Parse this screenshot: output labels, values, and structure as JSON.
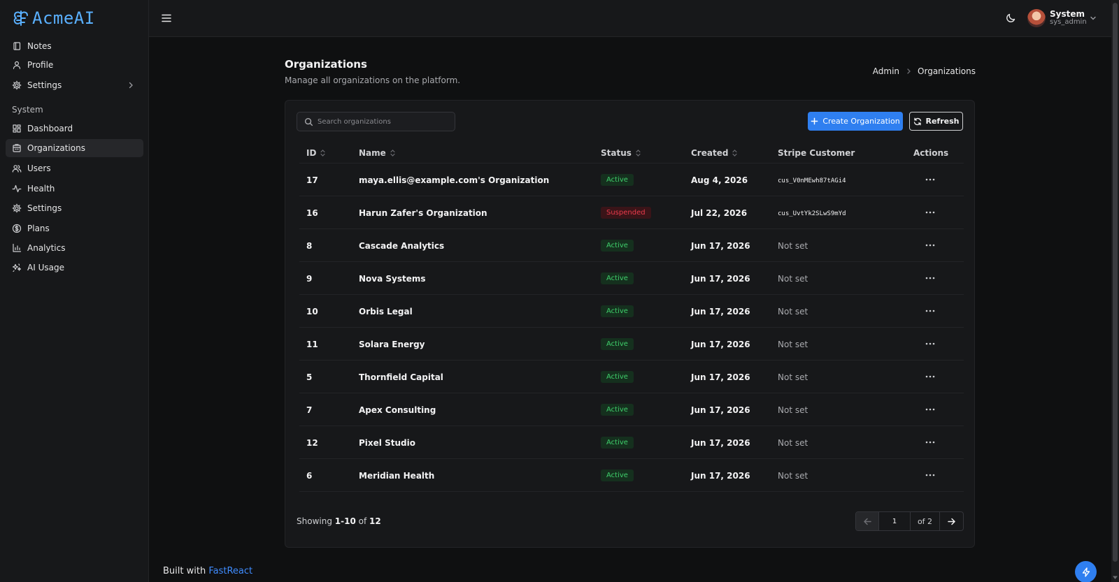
{
  "brand": {
    "name": "AcmeAI",
    "color": "#5ab0ff"
  },
  "sidebar": {
    "top_items": [
      {
        "label": "Notes",
        "icon": "notebook-icon"
      },
      {
        "label": "Profile",
        "icon": "user-icon"
      },
      {
        "label": "Settings",
        "icon": "gear-icon"
      }
    ],
    "section_label": "System",
    "system_items": [
      {
        "label": "Dashboard",
        "icon": "dashboard-icon"
      },
      {
        "label": "Organizations",
        "icon": "building-icon",
        "active": true
      },
      {
        "label": "Users",
        "icon": "users-icon"
      },
      {
        "label": "Health",
        "icon": "activity-icon"
      },
      {
        "label": "Settings",
        "icon": "gear-icon"
      },
      {
        "label": "Plans",
        "icon": "dollar-icon"
      },
      {
        "label": "Analytics",
        "icon": "bar-chart-icon"
      },
      {
        "label": "AI Usage",
        "icon": "sparkles-icon"
      }
    ]
  },
  "topbar": {
    "user_name": "System",
    "user_handle": "sys_admin"
  },
  "page": {
    "title": "Organizations",
    "subtitle": "Manage all organizations on the platform.",
    "breadcrumb": [
      "Admin",
      "Organizations"
    ]
  },
  "toolbar": {
    "search_placeholder": "Search organizations",
    "create_label": "Create Organization",
    "refresh_label": "Refresh",
    "accent": "#2f7ff0"
  },
  "table": {
    "columns": {
      "id": "ID",
      "name": "Name",
      "status": "Status",
      "created": "Created",
      "stripe": "Stripe Customer",
      "actions": "Actions"
    },
    "rows": [
      {
        "id": "17",
        "name": "maya.ellis@example.com's Organization",
        "status": "Active",
        "created": "Aug 4, 2026",
        "stripe": "cus_V0nMEwh87tAGi4"
      },
      {
        "id": "16",
        "name": "Harun Zafer's Organization",
        "status": "Suspended",
        "created": "Jul 22, 2026",
        "stripe": "cus_UvtYk2SLwS9mYd"
      },
      {
        "id": "8",
        "name": "Cascade Analytics",
        "status": "Active",
        "created": "Jun 17, 2026",
        "stripe": "Not set"
      },
      {
        "id": "9",
        "name": "Nova Systems",
        "status": "Active",
        "created": "Jun 17, 2026",
        "stripe": "Not set"
      },
      {
        "id": "10",
        "name": "Orbis Legal",
        "status": "Active",
        "created": "Jun 17, 2026",
        "stripe": "Not set"
      },
      {
        "id": "11",
        "name": "Solara Energy",
        "status": "Active",
        "created": "Jun 17, 2026",
        "stripe": "Not set"
      },
      {
        "id": "5",
        "name": "Thornfield Capital",
        "status": "Active",
        "created": "Jun 17, 2026",
        "stripe": "Not set"
      },
      {
        "id": "7",
        "name": "Apex Consulting",
        "status": "Active",
        "created": "Jun 17, 2026",
        "stripe": "Not set"
      },
      {
        "id": "12",
        "name": "Pixel Studio",
        "status": "Active",
        "created": "Jun 17, 2026",
        "stripe": "Not set"
      },
      {
        "id": "6",
        "name": "Meridian Health",
        "status": "Active",
        "created": "Jun 17, 2026",
        "stripe": "Not set"
      }
    ],
    "status_colors": {
      "Active": "#3fcf6b",
      "Suspended": "#ec3b4c"
    }
  },
  "footer": {
    "showing_prefix": "Showing",
    "showing_range": "1-10",
    "showing_of": "of",
    "showing_total": "12",
    "page_value": "1",
    "page_of": "of 2"
  },
  "built_with": {
    "prefix": "Built with",
    "link": "FastReact"
  }
}
